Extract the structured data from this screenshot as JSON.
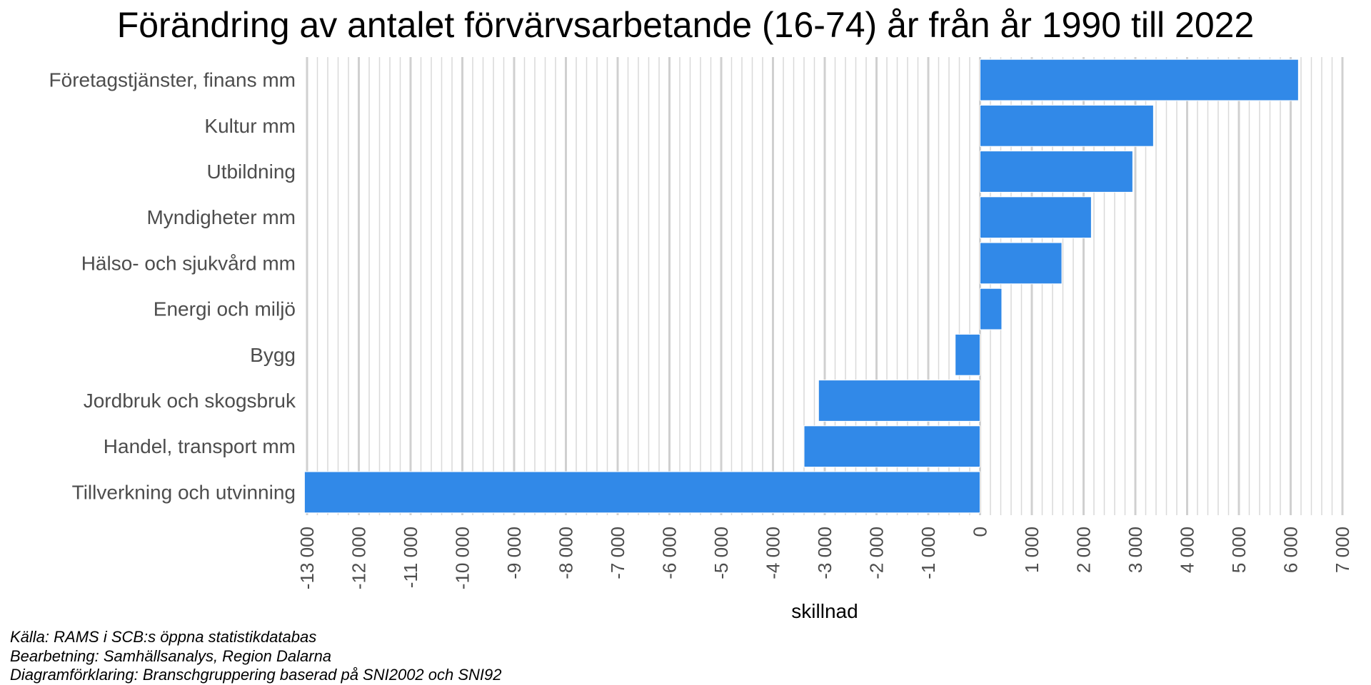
{
  "chart_data": {
    "type": "bar",
    "orientation": "horizontal",
    "title": "Förändring av antalet förvärvsarbetande (16-74) år från år 1990 till 2022",
    "xlabel": "skillnad",
    "ylabel": "",
    "categories": [
      "Företagstjänster, finans mm",
      "Kultur mm",
      "Utbildning",
      "Myndigheter mm",
      "Hälso- och sjukvård mm",
      "Energi och miljö",
      "Bygg",
      "Jordbruk och skogsbruk",
      "Handel, transport mm",
      "Tillverkning och utvinning"
    ],
    "values": [
      6150,
      3350,
      2950,
      2150,
      1580,
      420,
      -480,
      -3120,
      -3400,
      -13050
    ],
    "xlim": [
      -13000,
      7000
    ],
    "major_ticks": [
      -13000,
      -12000,
      -11000,
      -10000,
      -9000,
      -8000,
      -7000,
      -6000,
      -5000,
      -4000,
      -3000,
      -2000,
      -1000,
      0,
      1000,
      2000,
      3000,
      4000,
      5000,
      6000,
      7000
    ],
    "tick_labels": [
      "-13 000",
      "-12 000",
      "-11 000",
      "-10 000",
      "-9 000",
      "-8 000",
      "-7 000",
      "-6 000",
      "-5 000",
      "-4 000",
      "-3 000",
      "-2 000",
      "-1 000",
      "0",
      "1 000",
      "2 000",
      "3 000",
      "4 000",
      "5 000",
      "6 000",
      "7 000"
    ],
    "minor_grid_step": 200,
    "grid": true,
    "legend": "none",
    "bar_color": "#3189e8",
    "major_grid_color": "#d0d0d0",
    "minor_grid_color": "#d9d9d9"
  },
  "footnotes": {
    "source": "Källa: RAMS i SCB:s öppna statistikdatabas",
    "processing": "Bearbetning: Samhällsanalys, Region Dalarna",
    "explanation": "Diagramförklaring: Branschgruppering baserad på SNI2002 och SNI92"
  }
}
